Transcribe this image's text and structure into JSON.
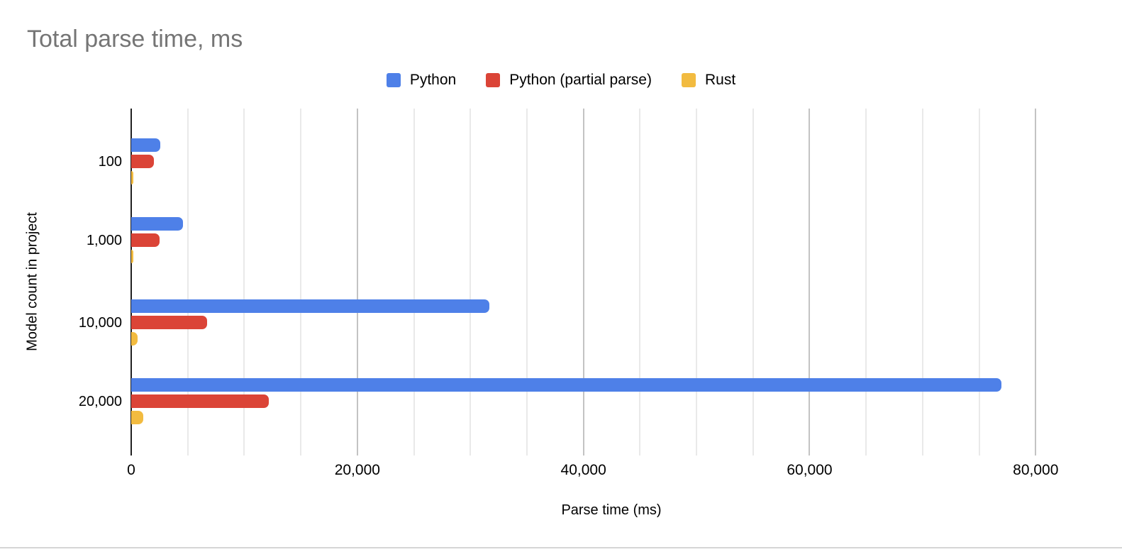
{
  "chart_data": {
    "type": "bar",
    "orientation": "horizontal",
    "title": "Total parse time, ms",
    "categories": [
      "100",
      "1,000",
      "10,000",
      "20,000"
    ],
    "series": [
      {
        "name": "Python",
        "color": "#4E80E8",
        "values": [
          2600,
          4600,
          31700,
          77000
        ]
      },
      {
        "name": "Python (partial parse)",
        "color": "#DB4437",
        "values": [
          2000,
          2500,
          6700,
          12200
        ]
      },
      {
        "name": "Rust",
        "color": "#F2BB40",
        "values": [
          100,
          150,
          550,
          1050
        ]
      }
    ],
    "xlabel": "Parse time (ms)",
    "ylabel": "Model count in project",
    "xlim": [
      0,
      85000
    ],
    "x_ticks": [
      {
        "value": 0,
        "label": "0"
      },
      {
        "value": 20000,
        "label": "20,000"
      },
      {
        "value": 40000,
        "label": "40,000"
      },
      {
        "value": 60000,
        "label": "60,000"
      },
      {
        "value": 80000,
        "label": "80,000"
      }
    ],
    "gridline_step": 5000,
    "major_step": 20000,
    "legend_position": "top",
    "grid": true,
    "colors": {
      "title": "#757575",
      "axis": "#212121",
      "grid_minor": "#e9e9e9",
      "grid_major": "#c3c3c3",
      "text": "#000000",
      "page_border": "#d6d6d6"
    }
  }
}
